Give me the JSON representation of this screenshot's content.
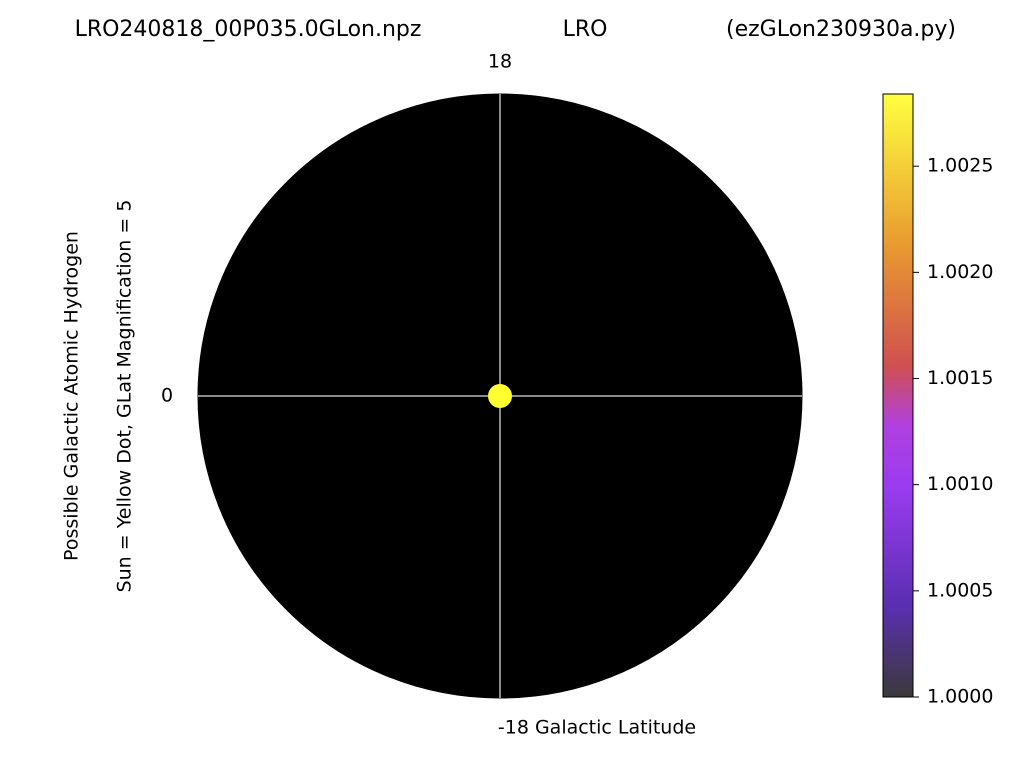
{
  "chart_data": {
    "type": "polar-map",
    "title_parts": [
      "LRO240818_00P035.0GLon.npz",
      "LRO",
      "(ezGLon230930a.py)"
    ],
    "top_label": "18",
    "left_label": "0",
    "bottom_label": "-18 Galactic Latitude",
    "ylabel_lines": [
      "Possible Galactic Atomic Hydrogen",
      "Sun = Yellow Dot, GLat Magnification = 5"
    ],
    "colorbar": {
      "lim": [
        1.0,
        1.00284
      ],
      "ticks": [
        {
          "value": 1.0,
          "label": "1.0000"
        },
        {
          "value": 1.0005,
          "label": "1.0005"
        },
        {
          "value": 1.001,
          "label": "1.0010"
        },
        {
          "value": 1.0015,
          "label": "1.0015"
        },
        {
          "value": 1.002,
          "label": "1.0020"
        },
        {
          "value": 1.0025,
          "label": "1.0025"
        }
      ]
    }
  }
}
